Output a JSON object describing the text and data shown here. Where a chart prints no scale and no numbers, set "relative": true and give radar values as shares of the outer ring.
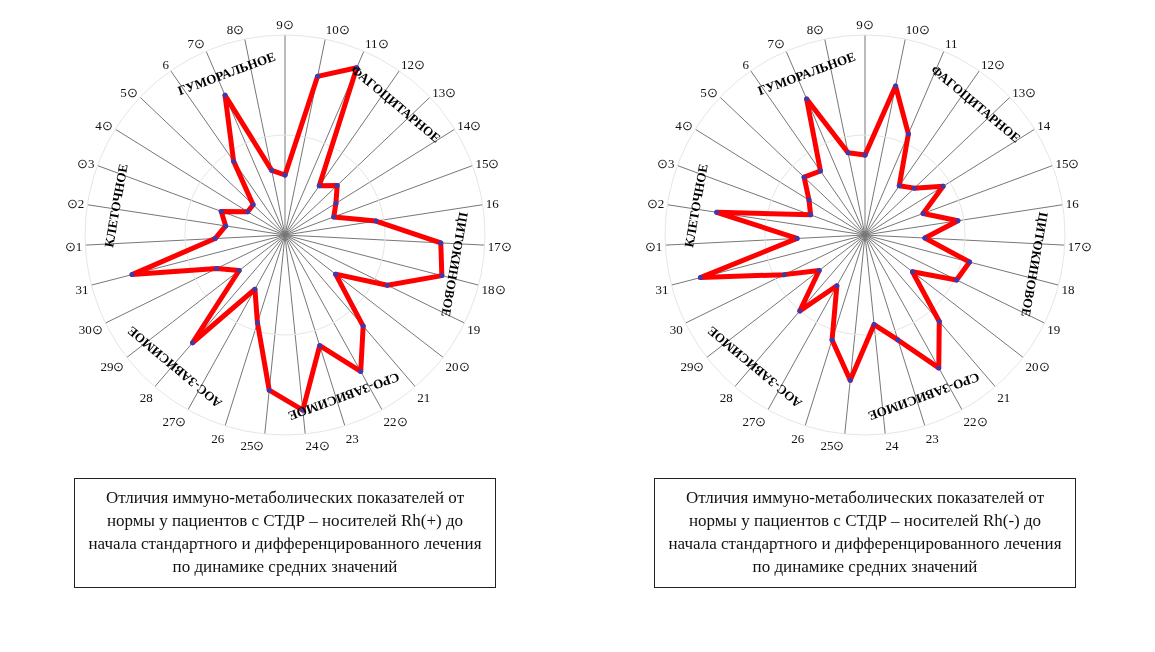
{
  "chart_data": [
    {
      "type": "radar",
      "relative": true,
      "grid": true,
      "marker": "circle",
      "title": "Отличия иммуно-метаболических показателей от нормы у пациентов с СТДР – носителей Rh(+) до начала стандартного и дифференцированного лечения по динамике средних значений",
      "categories": [
        "9⊙",
        "10⊙",
        "11⊙",
        "12⊙",
        "13⊙",
        "14⊙",
        "15⊙",
        "16",
        "17⊙",
        "18⊙",
        "19",
        "20⊙",
        "21",
        "22⊙",
        "23",
        "24⊙",
        "25⊙",
        "26",
        "27⊙",
        "28",
        "29⊙",
        "30⊙",
        "31",
        "⊙1",
        "⊙2",
        "⊙3",
        "4⊙",
        "5⊙",
        "6",
        "7⊙",
        "8⊙"
      ],
      "series": [
        {
          "color": "#ff0000",
          "values": [
            0.3,
            0.81,
            0.91,
            0.3,
            0.36,
            0.3,
            0.26,
            0.46,
            0.78,
            0.81,
            0.57,
            0.32,
            0.6,
            0.78,
            0.58,
            0.88,
            0.78,
            0.46,
            0.31,
            0.71,
            0.29,
            0.38,
            0.79,
            0.35,
            0.3,
            0.34,
            0.22,
            0.22,
            0.45,
            0.76,
            0.33
          ]
        }
      ],
      "annotations": [
        "ГУМОРАЛЬНОЕ",
        "ФАГОЦИТАРНОЕ",
        "ЦИТОКИНОВОЕ",
        "СРО-ЗАВИСИМОЕ",
        "АОС-ЗАВИСИМОЕ",
        "КЛЕТОЧНОЕ"
      ]
    },
    {
      "type": "radar",
      "relative": true,
      "grid": true,
      "marker": "circle",
      "title": "Отличия иммуно-метаболических показателей от нормы у пациентов с СТДР – носителей Rh(-) до начала стандартного и дифференцированного лечения по динамике средних значений",
      "categories": [
        "9⊙",
        "10⊙",
        "11",
        "12⊙",
        "13⊙",
        "14",
        "15⊙",
        "16",
        "17⊙",
        "18",
        "19",
        "20⊙",
        "21",
        "22⊙",
        "23",
        "24",
        "25⊙",
        "26",
        "27⊙",
        "28",
        "29⊙",
        "30",
        "31",
        "⊙1",
        "⊙2",
        "⊙3",
        "4⊙",
        "5⊙",
        "6",
        "7⊙",
        "8⊙"
      ],
      "series": [
        {
          "color": "#ff0000",
          "values": [
            0.4,
            0.76,
            0.55,
            0.3,
            0.34,
            0.46,
            0.31,
            0.47,
            0.3,
            0.54,
            0.51,
            0.3,
            0.57,
            0.76,
            0.55,
            0.45,
            0.73,
            0.55,
            0.29,
            0.5,
            0.29,
            0.45,
            0.85,
            0.34,
            0.75,
            0.29,
            0.33,
            0.42,
            0.39,
            0.74,
            0.42
          ]
        }
      ],
      "annotations": [
        "ГУМОРАЛЬНОЕ",
        "ФАГОЦИТАРНОЕ",
        "ЦИТОКИНОВОЕ",
        "СРО-ЗАВИСИМОЕ",
        "АОС-ЗАВИСИМОЕ",
        "КЛЕТОЧНОЕ"
      ]
    }
  ]
}
